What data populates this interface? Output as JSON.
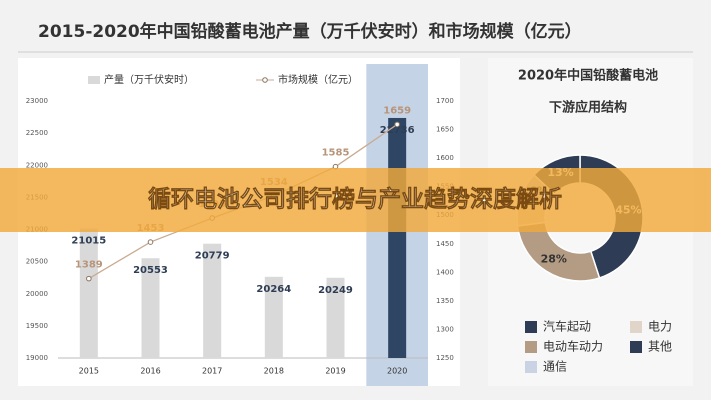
{
  "title": "2015-2020年中国铅酸蓄电池产量（万千伏安时）和市场规模（亿元）",
  "banner": "循环电池公司排行榜与产业趋势深度解析",
  "chart_data": [
    {
      "type": "bar-line",
      "categories": [
        "2015",
        "2016",
        "2017",
        "2018",
        "2019",
        "2020"
      ],
      "series": [
        {
          "name": "产量（万千伏安时）",
          "type": "bar",
          "color": "#d9d9d9",
          "highlight_color": "#2e4663",
          "values": [
            21015,
            20553,
            20779,
            20264,
            20249,
            22736
          ]
        },
        {
          "name": "市场规模（亿元）",
          "type": "line",
          "axis": "y2",
          "color": "#c8ab90",
          "values": [
            1389,
            1453,
            1495,
            1534,
            1585,
            1659
          ]
        }
      ],
      "ylim": [
        19000,
        23000
      ],
      "yticks": [
        19000,
        19500,
        20000,
        20500,
        21000,
        21500,
        22000,
        22500,
        23000
      ],
      "y2lim": [
        1250,
        1700
      ],
      "y2ticks": [
        1250,
        1300,
        1350,
        1400,
        1450,
        1500,
        1550,
        1600,
        1650,
        1700
      ],
      "highlight": "2020"
    },
    {
      "type": "donut",
      "title": [
        "2020年中国铅酸蓄电池",
        "下游应用结构"
      ],
      "categories": [
        "汽车起动",
        "电动车动力",
        "电力",
        "通信",
        "其他"
      ],
      "values": [
        45,
        28,
        8,
        6,
        13
      ],
      "value_labels": [
        "45%",
        "28%",
        null,
        "6%",
        "13%"
      ],
      "colors": [
        "#2e3d55",
        "#b39b84",
        "#e0d5c8",
        "#c9d3e3",
        "#2e3d55"
      ]
    }
  ]
}
